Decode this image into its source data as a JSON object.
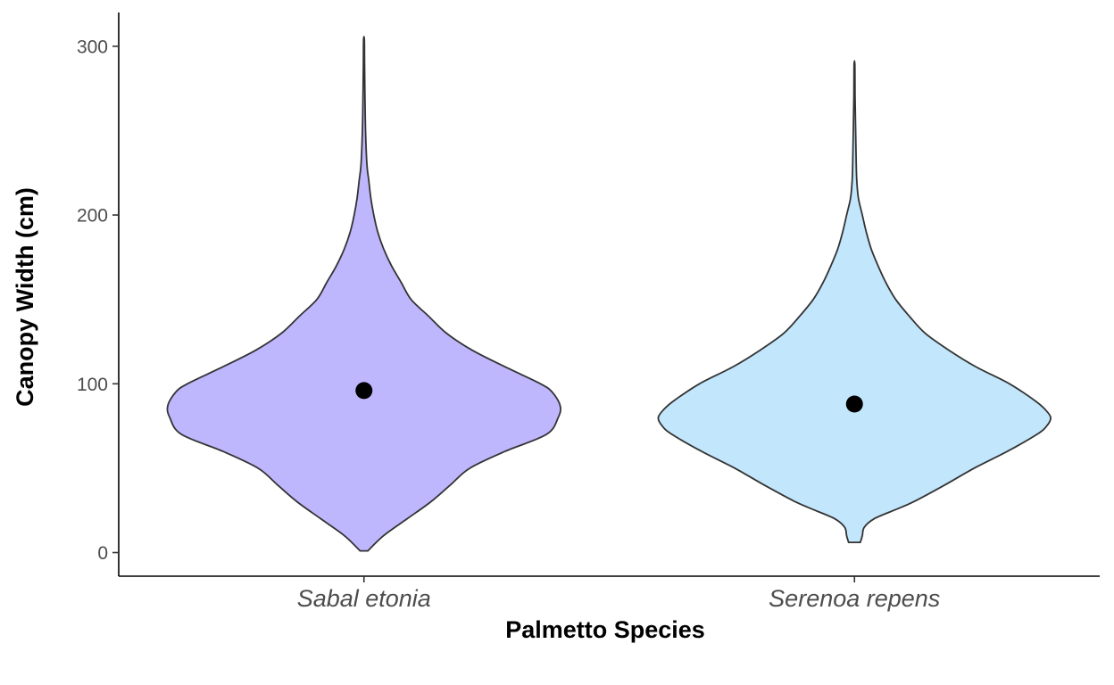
{
  "chart_data": {
    "type": "violin",
    "title": "",
    "xlabel": "Palmetto Species",
    "ylabel": "Canopy Width (cm)",
    "categories": [
      "Sabal etonia",
      "Serenoa repens"
    ],
    "ylim": [
      -14,
      320
    ],
    "yticks": [
      0,
      100,
      200,
      300
    ],
    "grid": false,
    "legend": "none",
    "series": [
      {
        "category": "Sabal etonia",
        "color": "#bfb7fe",
        "mean": 96,
        "min": 1,
        "max": 304,
        "density_profile": [
          [
            1,
            0.02
          ],
          [
            10,
            0.1
          ],
          [
            20,
            0.22
          ],
          [
            30,
            0.34
          ],
          [
            40,
            0.44
          ],
          [
            50,
            0.54
          ],
          [
            60,
            0.72
          ],
          [
            70,
            0.93
          ],
          [
            80,
            0.99
          ],
          [
            87,
            1.0
          ],
          [
            95,
            0.96
          ],
          [
            100,
            0.9
          ],
          [
            110,
            0.72
          ],
          [
            120,
            0.55
          ],
          [
            130,
            0.42
          ],
          [
            140,
            0.33
          ],
          [
            150,
            0.24
          ],
          [
            160,
            0.19
          ],
          [
            170,
            0.14
          ],
          [
            180,
            0.1
          ],
          [
            190,
            0.07
          ],
          [
            200,
            0.05
          ],
          [
            210,
            0.035
          ],
          [
            220,
            0.025
          ],
          [
            230,
            0.015
          ],
          [
            250,
            0.008
          ],
          [
            270,
            0.005
          ],
          [
            290,
            0.003
          ],
          [
            304,
            0.002
          ]
        ]
      },
      {
        "category": "Serenoa repens",
        "color": "#c2e6fc",
        "mean": 88,
        "min": 6,
        "max": 289,
        "density_profile": [
          [
            6,
            0.03
          ],
          [
            10,
            0.04
          ],
          [
            15,
            0.05
          ],
          [
            20,
            0.1
          ],
          [
            25,
            0.2
          ],
          [
            30,
            0.3
          ],
          [
            40,
            0.46
          ],
          [
            50,
            0.61
          ],
          [
            60,
            0.78
          ],
          [
            70,
            0.93
          ],
          [
            75,
            0.98
          ],
          [
            80,
            1.0
          ],
          [
            85,
            0.97
          ],
          [
            90,
            0.92
          ],
          [
            100,
            0.79
          ],
          [
            110,
            0.62
          ],
          [
            120,
            0.48
          ],
          [
            130,
            0.36
          ],
          [
            140,
            0.28
          ],
          [
            150,
            0.21
          ],
          [
            160,
            0.16
          ],
          [
            170,
            0.12
          ],
          [
            180,
            0.085
          ],
          [
            190,
            0.06
          ],
          [
            200,
            0.04
          ],
          [
            210,
            0.02
          ],
          [
            220,
            0.012
          ],
          [
            230,
            0.009
          ],
          [
            250,
            0.006
          ],
          [
            270,
            0.003
          ],
          [
            289,
            0.002
          ]
        ]
      }
    ]
  }
}
